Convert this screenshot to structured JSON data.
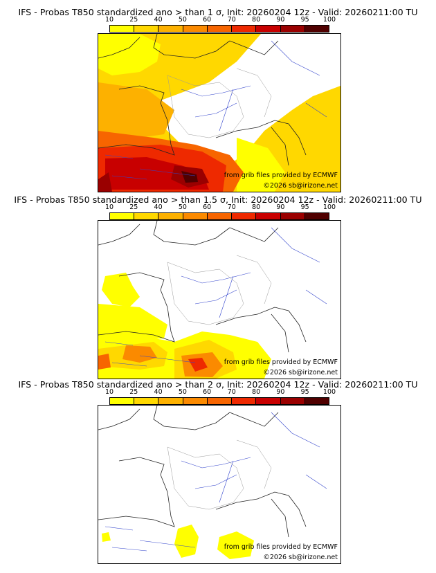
{
  "colors": {
    "bins": [
      "#ffff00",
      "#ffd800",
      "#fdb100",
      "#fb8a00",
      "#f76500",
      "#ee2900",
      "#c80000",
      "#9a0000",
      "#500000"
    ]
  },
  "legend": {
    "ticks": [
      "10",
      "25",
      "40",
      "50",
      "60",
      "70",
      "80",
      "90",
      "95",
      "100"
    ]
  },
  "panels": [
    {
      "title": "IFS - Probas T850  standardized ano > than 1 σ, Init: 20260204 12z - Valid: 20260211:00 TU",
      "credit_source": "from grib files provided by ECMWF",
      "credit_copyright": "©2026 sb@irizone.net"
    },
    {
      "title": "IFS - Probas T850  standardized ano > than 1.5 σ, Init: 20260204 12z - Valid: 20260211:00 TU",
      "credit_source": "from grib files provided by ECMWF",
      "credit_copyright": "©2026 sb@irizone.net"
    },
    {
      "title": "IFS - Probas T850  standardized ano > than 2 σ, Init: 20260204 12z - Valid: 20260211:00 TU",
      "credit_source": "from grib files provided by ECMWF",
      "credit_copyright": "©2026 sb@irizone.net"
    }
  ]
}
